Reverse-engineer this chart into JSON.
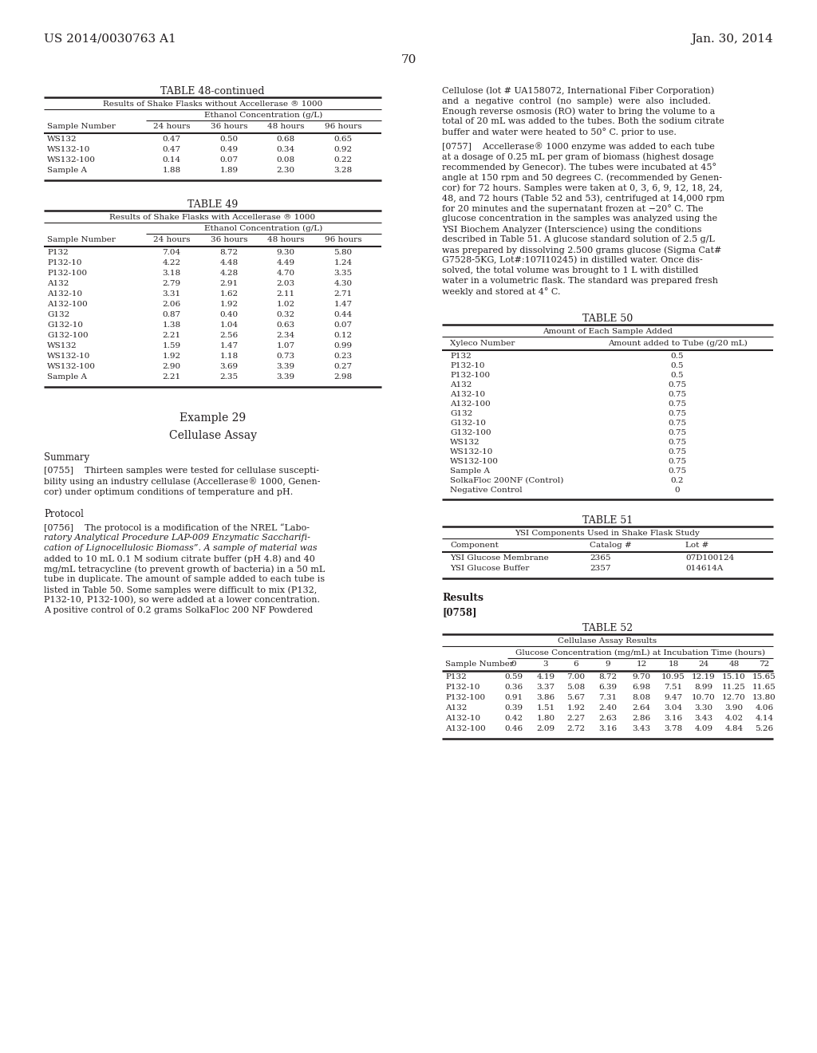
{
  "header_left": "US 2014/0030763 A1",
  "header_right": "Jan. 30, 2014",
  "page_number": "70",
  "bg_color": "#ffffff",
  "text_color": "#231f20",
  "table48_title": "TABLE 48-continued",
  "table48_subtitle": "Results of Shake Flasks without Accellerase ® 1000",
  "table48_subheader": "Ethanol Concentration (g/L)",
  "table48_cols": [
    "Sample Number",
    "24 hours",
    "36 hours",
    "48 hours",
    "96 hours"
  ],
  "table48_data": [
    [
      "WS132",
      "0.47",
      "0.50",
      "0.68",
      "0.65"
    ],
    [
      "WS132-10",
      "0.47",
      "0.49",
      "0.34",
      "0.92"
    ],
    [
      "WS132-100",
      "0.14",
      "0.07",
      "0.08",
      "0.22"
    ],
    [
      "Sample A",
      "1.88",
      "1.89",
      "2.30",
      "3.28"
    ]
  ],
  "table49_title": "TABLE 49",
  "table49_subtitle": "Results of Shake Flasks with Accellerase ® 1000",
  "table49_subheader": "Ethanol Concentration (g/L)",
  "table49_cols": [
    "Sample Number",
    "24 hours",
    "36 hours",
    "48 hours",
    "96 hours"
  ],
  "table49_data": [
    [
      "P132",
      "7.04",
      "8.72",
      "9.30",
      "5.80"
    ],
    [
      "P132-10",
      "4.22",
      "4.48",
      "4.49",
      "1.24"
    ],
    [
      "P132-100",
      "3.18",
      "4.28",
      "4.70",
      "3.35"
    ],
    [
      "A132",
      "2.79",
      "2.91",
      "2.03",
      "4.30"
    ],
    [
      "A132-10",
      "3.31",
      "1.62",
      "2.11",
      "2.71"
    ],
    [
      "A132-100",
      "2.06",
      "1.92",
      "1.02",
      "1.47"
    ],
    [
      "G132",
      "0.87",
      "0.40",
      "0.32",
      "0.44"
    ],
    [
      "G132-10",
      "1.38",
      "1.04",
      "0.63",
      "0.07"
    ],
    [
      "G132-100",
      "2.21",
      "2.56",
      "2.34",
      "0.12"
    ],
    [
      "WS132",
      "1.59",
      "1.47",
      "1.07",
      "0.99"
    ],
    [
      "WS132-10",
      "1.92",
      "1.18",
      "0.73",
      "0.23"
    ],
    [
      "WS132-100",
      "2.90",
      "3.69",
      "3.39",
      "0.27"
    ],
    [
      "Sample A",
      "2.21",
      "2.35",
      "3.39",
      "2.98"
    ]
  ],
  "example29_title": "Example 29",
  "example29_subtitle": "Cellulase Assay",
  "summary_head": "Summary",
  "protocol_head": "Protocol",
  "lines_0755": [
    "[0755]    Thirteen samples were tested for cellulase suscepti-",
    "bility using an industry cellulase (Accellerase® 1000, Genen-",
    "cor) under optimum conditions of temperature and pH."
  ],
  "lines_0756": [
    "[0756]    The protocol is a modification of the NREL “Labo-",
    "ratory Analytical Procedure LAP-009 Enzymatic Saccharifi-",
    "cation of Lignocellulosic Biomass”. A sample of material was",
    "added to 10 mL 0.1 M sodium citrate buffer (pH 4.8) and 40",
    "mg/mL tetracycline (to prevent growth of bacteria) in a 50 mL",
    "tube in duplicate. The amount of sample added to each tube is",
    "listed in Table 50. Some samples were difficult to mix (P132,",
    "P132-10, P132-100), so were added at a lower concentration.",
    "A positive control of 0.2 grams SolkaFloc 200 NF Powdered"
  ],
  "lines_0756_italic": [
    false,
    true,
    true,
    false,
    false,
    false,
    false,
    false,
    false
  ],
  "lines_right1": [
    "Cellulose (lot # UA158072, International Fiber Corporation)",
    "and  a  negative  control  (no  sample)  were  also  included.",
    "Enough reverse osmosis (RO) water to bring the volume to a",
    "total of 20 mL was added to the tubes. Both the sodium citrate",
    "buffer and water were heated to 50° C. prior to use."
  ],
  "lines_0757": [
    "[0757]    Accellerase® 1000 enzyme was added to each tube",
    "at a dosage of 0.25 mL per gram of biomass (highest dosage",
    "recommended by Genecor). The tubes were incubated at 45°",
    "angle at 150 rpm and 50 degrees C. (recommended by Genen-",
    "cor) for 72 hours. Samples were taken at 0, 3, 6, 9, 12, 18, 24,",
    "48, and 72 hours (Table 52 and 53), centrifuged at 14,000 rpm",
    "for 20 minutes and the supernatant frozen at −20° C. The",
    "glucose concentration in the samples was analyzed using the",
    "YSI Biochem Analyzer (Interscience) using the conditions",
    "described in Table 51. A glucose standard solution of 2.5 g/L",
    "was prepared by dissolving 2.500 grams glucose (Sigma Cat#",
    "G7528-5KG, Lot#:107I10245) in distilled water. Once dis-",
    "solved, the total volume was brought to 1 L with distilled",
    "water in a volumetric flask. The standard was prepared fresh",
    "weekly and stored at 4° C."
  ],
  "table50_title": "TABLE 50",
  "table50_subtitle": "Amount of Each Sample Added",
  "table50_cols": [
    "Xyleco Number",
    "Amount added to Tube (g/20 mL)"
  ],
  "table50_data": [
    [
      "P132",
      "0.5"
    ],
    [
      "P132-10",
      "0.5"
    ],
    [
      "P132-100",
      "0.5"
    ],
    [
      "A132",
      "0.75"
    ],
    [
      "A132-10",
      "0.75"
    ],
    [
      "A132-100",
      "0.75"
    ],
    [
      "G132",
      "0.75"
    ],
    [
      "G132-10",
      "0.75"
    ],
    [
      "G132-100",
      "0.75"
    ],
    [
      "WS132",
      "0.75"
    ],
    [
      "WS132-10",
      "0.75"
    ],
    [
      "WS132-100",
      "0.75"
    ],
    [
      "Sample A",
      "0.75"
    ],
    [
      "SolkaFloc 200NF (Control)",
      "0.2"
    ],
    [
      "Negative Control",
      "0"
    ]
  ],
  "table51_title": "TABLE 51",
  "table51_subtitle": "YSI Components Used in Shake Flask Study",
  "table51_cols": [
    "Component",
    "Catalog #",
    "Lot #"
  ],
  "table51_data": [
    [
      "YSI Glucose Membrane",
      "2365",
      "07D100124"
    ],
    [
      "YSI Glucose Buffer",
      "2357",
      "014614A"
    ]
  ],
  "results_head": "Results",
  "para0758": "[0758]",
  "table52_title": "TABLE 52",
  "table52_subtitle": "Cellulase Assay Results",
  "table52_subheader": "Glucose Concentration (mg/mL) at Incubation Time (hours)",
  "table52_cols": [
    "Sample Number",
    "0",
    "3",
    "6",
    "9",
    "12",
    "18",
    "24",
    "48",
    "72"
  ],
  "table52_data": [
    [
      "P132",
      "0.59",
      "4.19",
      "7.00",
      "8.72",
      "9.70",
      "10.95",
      "12.19",
      "15.10",
      "15.65"
    ],
    [
      "P132-10",
      "0.36",
      "3.37",
      "5.08",
      "6.39",
      "6.98",
      "7.51",
      "8.99",
      "11.25",
      "11.65"
    ],
    [
      "P132-100",
      "0.91",
      "3.86",
      "5.67",
      "7.31",
      "8.08",
      "9.47",
      "10.70",
      "12.70",
      "13.80"
    ],
    [
      "A132",
      "0.39",
      "1.51",
      "1.92",
      "2.40",
      "2.64",
      "3.04",
      "3.30",
      "3.90",
      "4.06"
    ],
    [
      "A132-10",
      "0.42",
      "1.80",
      "2.27",
      "2.63",
      "2.86",
      "3.16",
      "3.43",
      "4.02",
      "4.14"
    ],
    [
      "A132-100",
      "0.46",
      "2.09",
      "2.72",
      "3.16",
      "3.43",
      "3.78",
      "4.09",
      "4.84",
      "5.26"
    ]
  ]
}
